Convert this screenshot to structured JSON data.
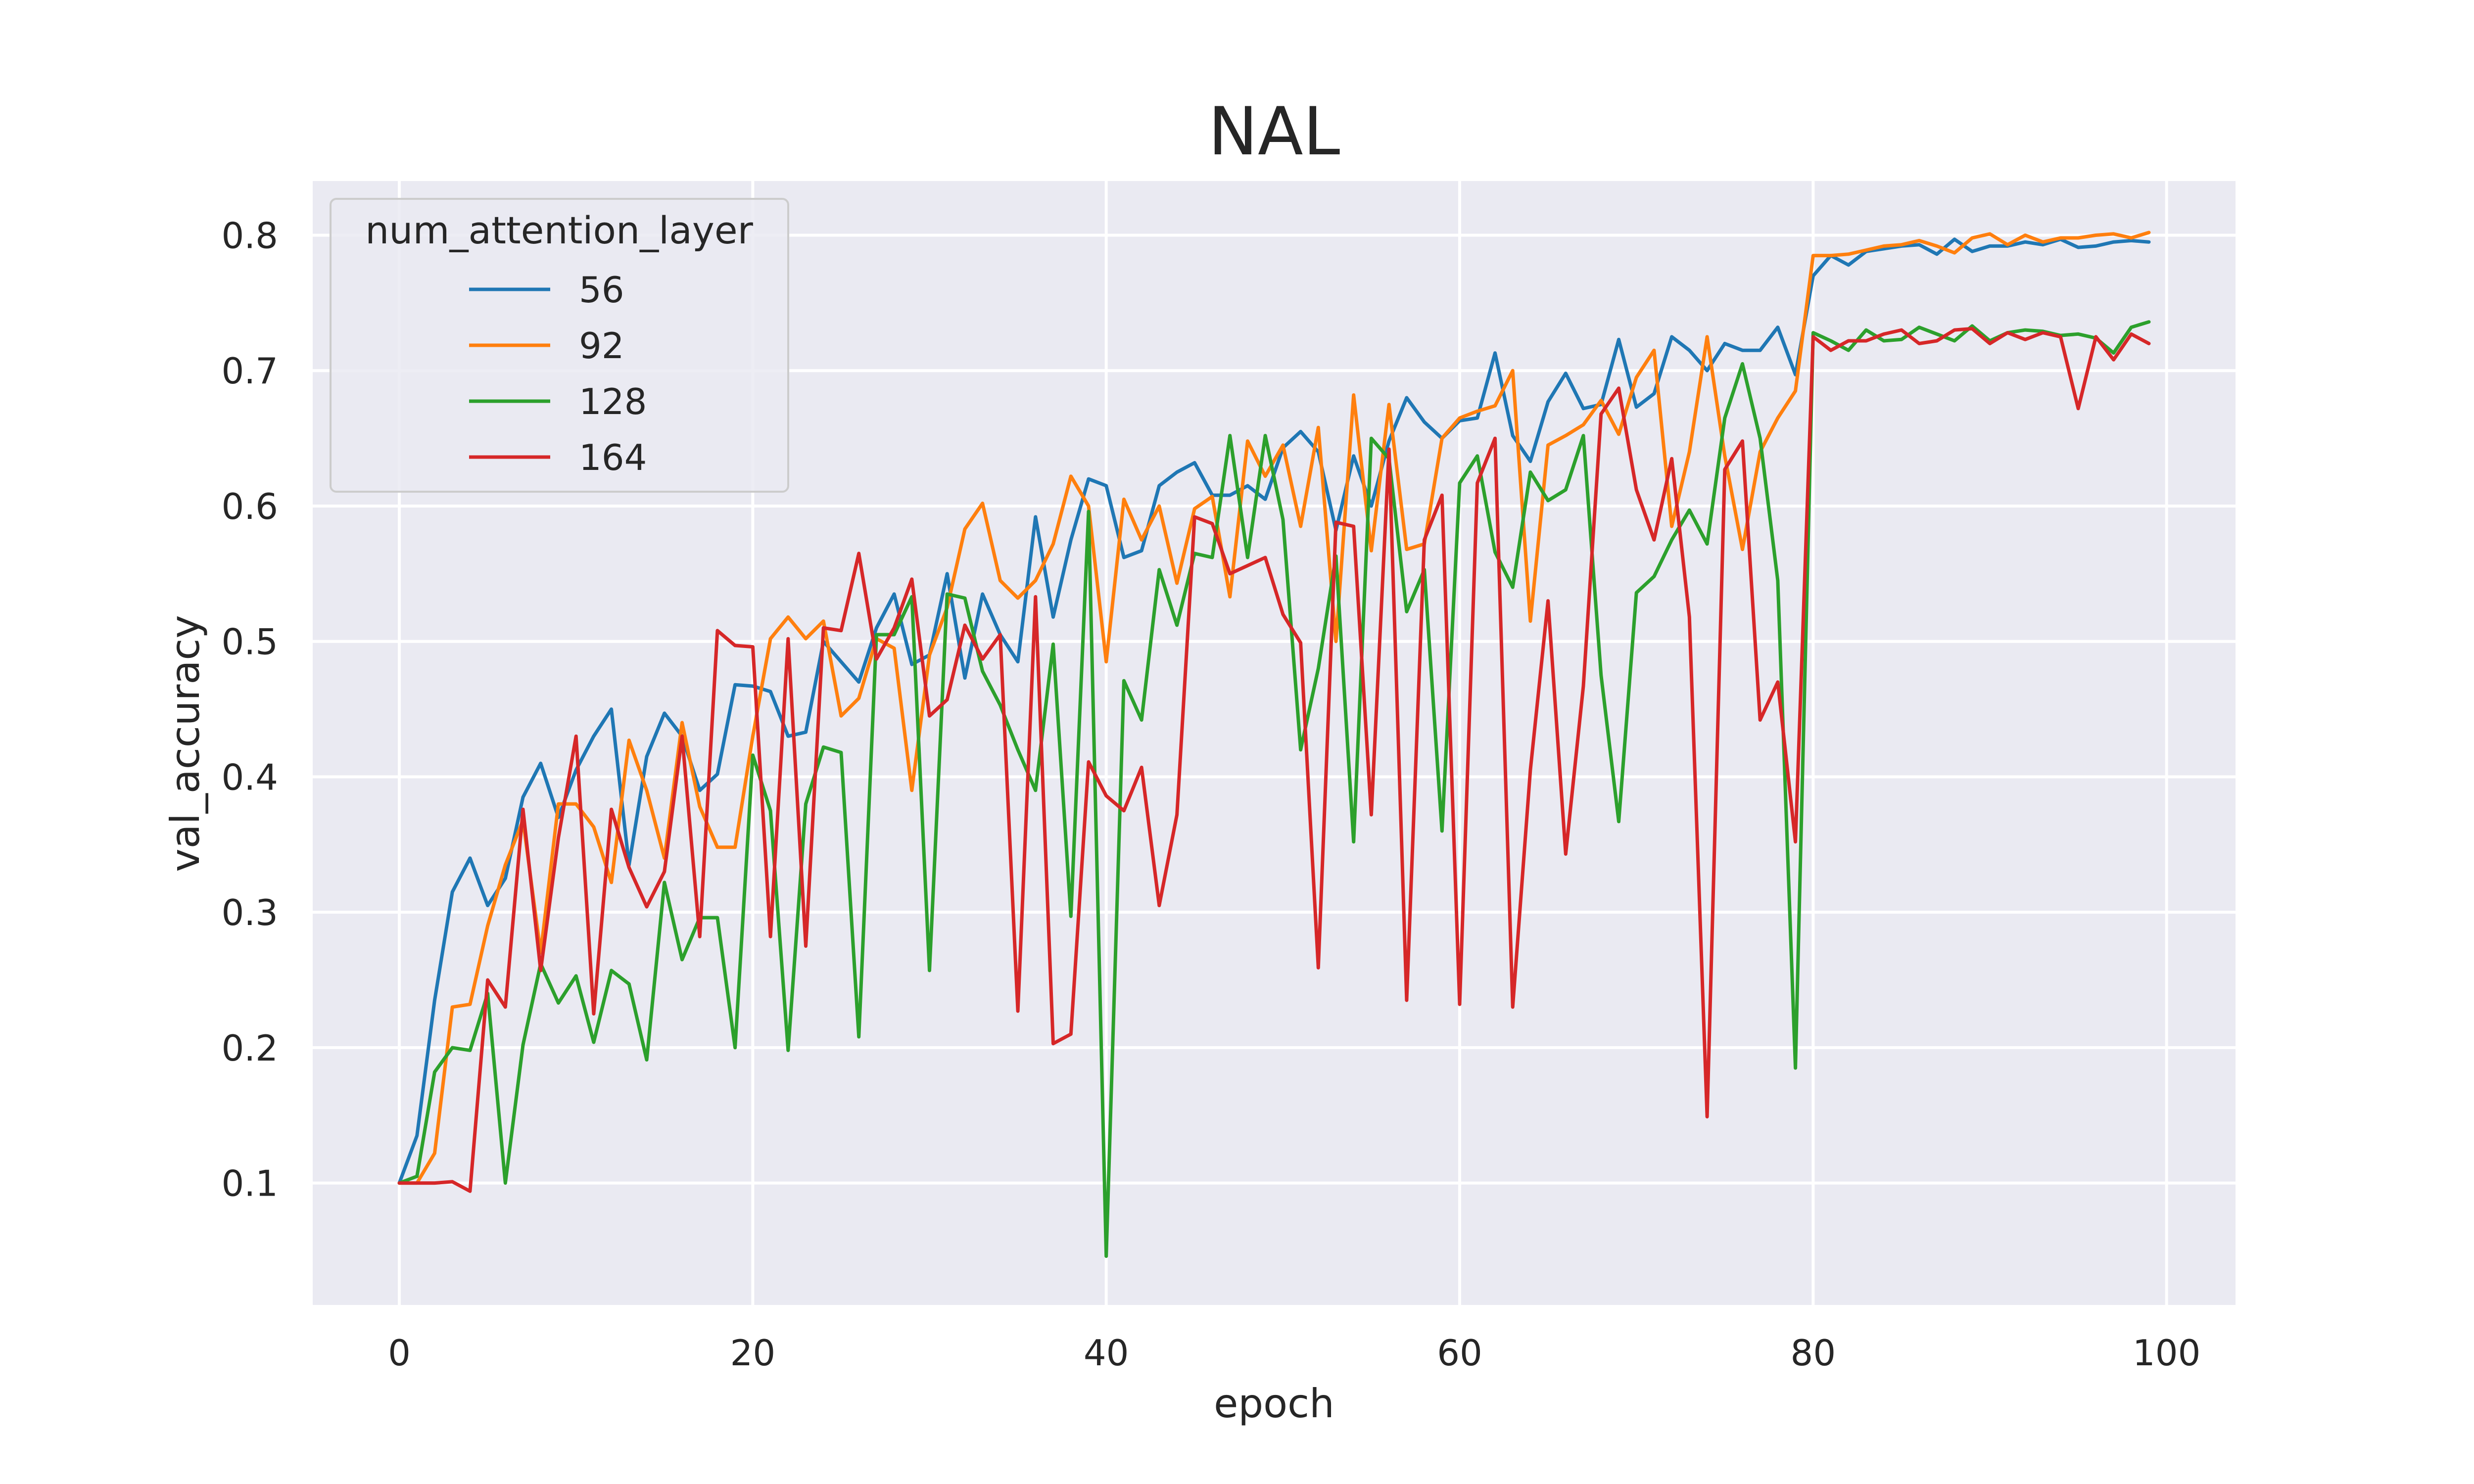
{
  "chart_data": {
    "type": "line",
    "title": "NAL",
    "xlabel": "epoch",
    "ylabel": "val_accuracy",
    "xlim": [
      -4.9,
      103.9
    ],
    "ylim": [
      0.01,
      0.84
    ],
    "xticks": [
      0,
      20,
      40,
      60,
      80,
      100
    ],
    "yticks": [
      0.1,
      0.2,
      0.3,
      0.4,
      0.5,
      0.6,
      0.7,
      0.8
    ],
    "grid": true,
    "background": "#eaeaf2",
    "legend": {
      "title": "num_attention_layer",
      "position": "top-left"
    },
    "x": [
      0,
      1,
      2,
      3,
      4,
      5,
      6,
      7,
      8,
      9,
      10,
      11,
      12,
      13,
      14,
      15,
      16,
      17,
      18,
      19,
      20,
      21,
      22,
      23,
      24,
      25,
      26,
      27,
      28,
      29,
      30,
      31,
      32,
      33,
      34,
      35,
      36,
      37,
      38,
      39,
      40,
      41,
      42,
      43,
      44,
      45,
      46,
      47,
      48,
      49,
      50,
      51,
      52,
      53,
      54,
      55,
      56,
      57,
      58,
      59,
      60,
      61,
      62,
      63,
      64,
      65,
      66,
      67,
      68,
      69,
      70,
      71,
      72,
      73,
      74,
      75,
      76,
      77,
      78,
      79,
      80,
      81,
      82,
      83,
      84,
      85,
      86,
      87,
      88,
      89,
      90,
      91,
      92,
      93,
      94,
      95,
      96,
      97,
      98,
      99
    ],
    "series": [
      {
        "name": "56",
        "color": "#1f77b4",
        "values": [
          0.1,
          0.135,
          0.235,
          0.315,
          0.34,
          0.305,
          0.325,
          0.385,
          0.41,
          0.37,
          0.405,
          0.43,
          0.45,
          0.335,
          0.415,
          0.447,
          0.43,
          0.39,
          0.402,
          0.468,
          0.467,
          0.463,
          0.43,
          0.433,
          0.5,
          0.485,
          0.47,
          0.51,
          0.535,
          0.483,
          0.49,
          0.55,
          0.473,
          0.535,
          0.505,
          0.485,
          0.592,
          0.518,
          0.575,
          0.62,
          0.615,
          0.562,
          0.567,
          0.615,
          0.625,
          0.632,
          0.608,
          0.608,
          0.615,
          0.605,
          0.643,
          0.655,
          0.64,
          0.582,
          0.637,
          0.6,
          0.648,
          0.68,
          0.662,
          0.65,
          0.663,
          0.665,
          0.713,
          0.652,
          0.633,
          0.677,
          0.698,
          0.672,
          0.675,
          0.723,
          0.673,
          0.683,
          0.725,
          0.715,
          0.7,
          0.72,
          0.715,
          0.715,
          0.732,
          0.697,
          0.77,
          0.785,
          0.778,
          0.788,
          0.79,
          0.792,
          0.793,
          0.786,
          0.797,
          0.788,
          0.792,
          0.792,
          0.795,
          0.793,
          0.797,
          0.791,
          0.792,
          0.795,
          0.796,
          0.795
        ]
      },
      {
        "name": "92",
        "color": "#ff7f0e",
        "values": [
          0.1,
          0.1,
          0.122,
          0.23,
          0.232,
          0.29,
          0.335,
          0.368,
          0.27,
          0.38,
          0.38,
          0.363,
          0.322,
          0.427,
          0.39,
          0.34,
          0.44,
          0.378,
          0.348,
          0.348,
          0.43,
          0.502,
          0.518,
          0.502,
          0.515,
          0.445,
          0.458,
          0.502,
          0.495,
          0.39,
          0.49,
          0.525,
          0.583,
          0.602,
          0.545,
          0.532,
          0.545,
          0.572,
          0.622,
          0.6,
          0.485,
          0.605,
          0.575,
          0.6,
          0.543,
          0.598,
          0.607,
          0.533,
          0.648,
          0.622,
          0.645,
          0.585,
          0.658,
          0.5,
          0.682,
          0.567,
          0.675,
          0.568,
          0.572,
          0.65,
          0.665,
          0.67,
          0.674,
          0.7,
          0.515,
          0.645,
          0.652,
          0.66,
          0.678,
          0.653,
          0.695,
          0.715,
          0.585,
          0.64,
          0.725,
          0.637,
          0.568,
          0.64,
          0.665,
          0.685,
          0.785,
          0.785,
          0.786,
          0.789,
          0.792,
          0.793,
          0.796,
          0.792,
          0.787,
          0.798,
          0.801,
          0.793,
          0.8,
          0.795,
          0.798,
          0.798,
          0.8,
          0.801,
          0.798,
          0.802
        ]
      },
      {
        "name": "128",
        "color": "#2ca02c",
        "values": [
          0.1,
          0.105,
          0.182,
          0.2,
          0.198,
          0.24,
          0.1,
          0.202,
          0.262,
          0.233,
          0.253,
          0.204,
          0.257,
          0.247,
          0.191,
          0.322,
          0.265,
          0.296,
          0.296,
          0.2,
          0.416,
          0.375,
          0.198,
          0.38,
          0.422,
          0.418,
          0.208,
          0.505,
          0.505,
          0.533,
          0.257,
          0.535,
          0.532,
          0.478,
          0.453,
          0.42,
          0.39,
          0.498,
          0.297,
          0.596,
          0.046,
          0.471,
          0.442,
          0.553,
          0.512,
          0.565,
          0.562,
          0.652,
          0.562,
          0.652,
          0.59,
          0.42,
          0.48,
          0.563,
          0.352,
          0.65,
          0.635,
          0.522,
          0.553,
          0.36,
          0.617,
          0.637,
          0.566,
          0.54,
          0.625,
          0.604,
          0.612,
          0.652,
          0.475,
          0.367,
          0.536,
          0.548,
          0.575,
          0.597,
          0.572,
          0.665,
          0.705,
          0.65,
          0.545,
          0.185,
          0.728,
          0.722,
          0.715,
          0.73,
          0.722,
          0.723,
          0.732,
          0.727,
          0.722,
          0.733,
          0.722,
          0.728,
          0.73,
          0.729,
          0.726,
          0.727,
          0.724,
          0.713,
          0.732,
          0.736
        ]
      },
      {
        "name": "164",
        "color": "#d62728",
        "values": [
          0.1,
          0.1,
          0.1,
          0.101,
          0.094,
          0.25,
          0.23,
          0.376,
          0.257,
          0.355,
          0.43,
          0.225,
          0.376,
          0.333,
          0.304,
          0.33,
          0.43,
          0.282,
          0.508,
          0.497,
          0.496,
          0.282,
          0.502,
          0.275,
          0.51,
          0.508,
          0.565,
          0.487,
          0.51,
          0.546,
          0.445,
          0.457,
          0.512,
          0.487,
          0.505,
          0.227,
          0.533,
          0.203,
          0.21,
          0.411,
          0.386,
          0.375,
          0.407,
          0.305,
          0.372,
          0.592,
          0.587,
          0.55,
          0.556,
          0.562,
          0.52,
          0.499,
          0.259,
          0.588,
          0.585,
          0.372,
          0.642,
          0.235,
          0.575,
          0.608,
          0.232,
          0.617,
          0.65,
          0.23,
          0.405,
          0.53,
          0.343,
          0.467,
          0.668,
          0.687,
          0.612,
          0.575,
          0.635,
          0.518,
          0.149,
          0.627,
          0.648,
          0.442,
          0.47,
          0.352,
          0.725,
          0.715,
          0.722,
          0.722,
          0.727,
          0.73,
          0.72,
          0.722,
          0.73,
          0.731,
          0.72,
          0.728,
          0.723,
          0.728,
          0.725,
          0.672,
          0.725,
          0.708,
          0.727,
          0.72
        ]
      }
    ]
  }
}
